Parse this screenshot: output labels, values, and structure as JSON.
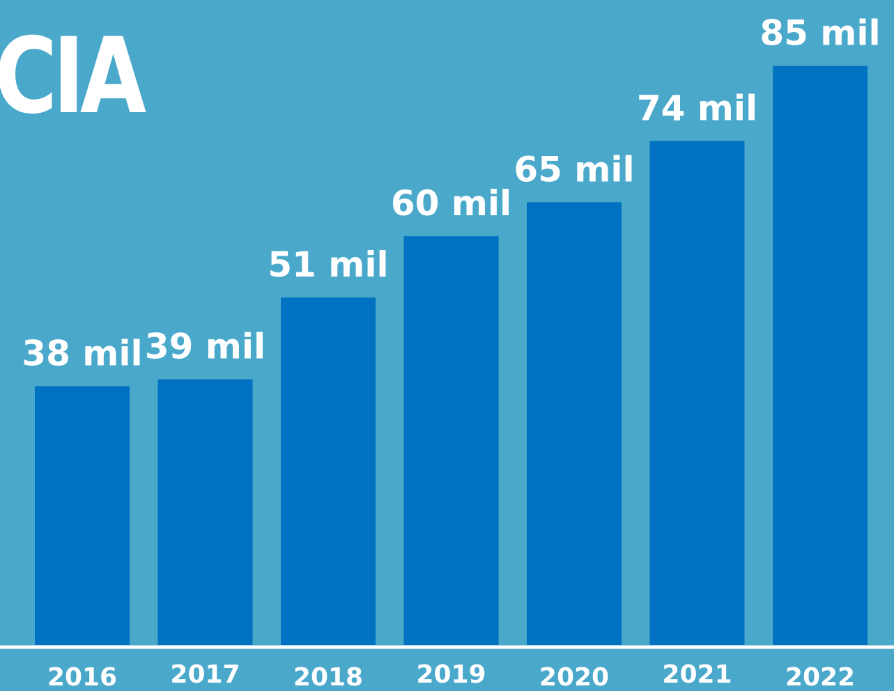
{
  "headline_fragment": "CIA",
  "colors": {
    "background": "#4aa8cb",
    "bar": "#0072c1",
    "baseline": "#ffffff",
    "text": "#ffffff"
  },
  "chart_data": {
    "type": "bar",
    "title": "",
    "xlabel": "",
    "ylabel": "",
    "categories": [
      "2016",
      "2017",
      "2018",
      "2019",
      "2020",
      "2021",
      "2022"
    ],
    "values": [
      38,
      39,
      51,
      60,
      65,
      74,
      85
    ],
    "data_labels": [
      "38 mil",
      "39 mil",
      "51 mil",
      "60 mil",
      "65 mil",
      "74 mil",
      "85 mil"
    ],
    "ylim": [
      0,
      100
    ],
    "grid": false,
    "legend": "none"
  }
}
